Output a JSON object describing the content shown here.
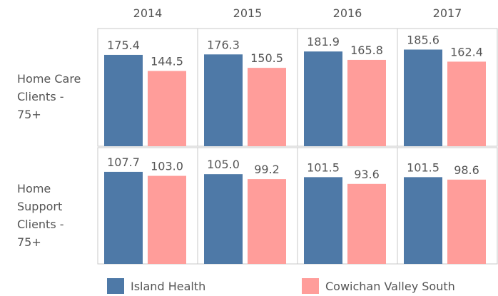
{
  "chart_data": {
    "type": "bar",
    "categories": [
      "2014",
      "2015",
      "2016",
      "2017"
    ],
    "rows": [
      {
        "label": "Home Care Clients - 75+",
        "ylim": [
          0,
          226
        ],
        "series": [
          {
            "name": "Island Health",
            "color": "#4e79a7",
            "values": [
              175.4,
              176.3,
              181.9,
              185.6
            ]
          },
          {
            "name": "Cowichan Valley South",
            "color": "#ff9d9a",
            "values": [
              144.5,
              150.5,
              165.8,
              162.4
            ]
          }
        ]
      },
      {
        "label": "Home Support Clients - 75+",
        "ylim": [
          0,
          136
        ],
        "series": [
          {
            "name": "Island Health",
            "color": "#4e79a7",
            "values": [
              107.7,
              105.0,
              101.5,
              101.5
            ],
            "value_labels": [
              "107.7",
              "105.0",
              "101.5",
              "101.5"
            ]
          },
          {
            "name": "Cowichan Valley South",
            "color": "#ff9d9a",
            "values": [
              103.0,
              99.2,
              93.6,
              98.6
            ],
            "value_labels": [
              "103.0",
              "99.2",
              "93.6",
              "98.6"
            ]
          }
        ]
      }
    ],
    "legend": [
      {
        "name": "Island Health",
        "color": "#4e79a7"
      },
      {
        "name": "Cowichan Valley South",
        "color": "#ff9d9a"
      }
    ]
  }
}
